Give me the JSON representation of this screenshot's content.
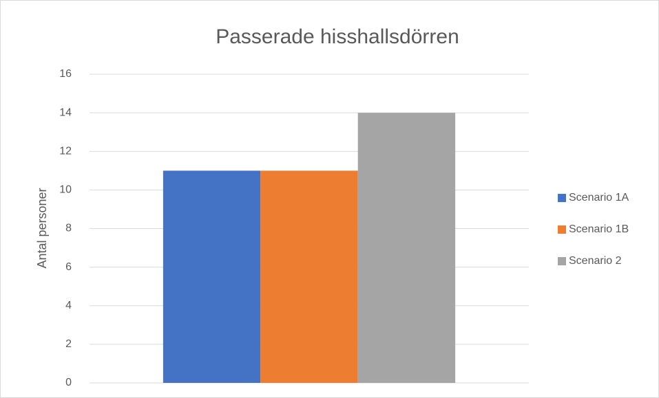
{
  "chart_data": {
    "type": "bar",
    "title": "Passerade hisshallsdörren",
    "y_label": "Antal personer",
    "categories": [
      null
    ],
    "series": [
      {
        "name": "Scenario 1A",
        "color": "#4472c4",
        "values": [
          11
        ]
      },
      {
        "name": "Scenario 1B",
        "color": "#ed7d31",
        "values": [
          11
        ]
      },
      {
        "name": "Scenario 2",
        "color": "#a5a5a5",
        "values": [
          14
        ]
      }
    ],
    "ylim": [
      0,
      16
    ],
    "yticks": [
      0,
      2,
      4,
      6,
      8,
      10,
      12,
      14,
      16
    ],
    "grid": true,
    "legend": "right"
  }
}
